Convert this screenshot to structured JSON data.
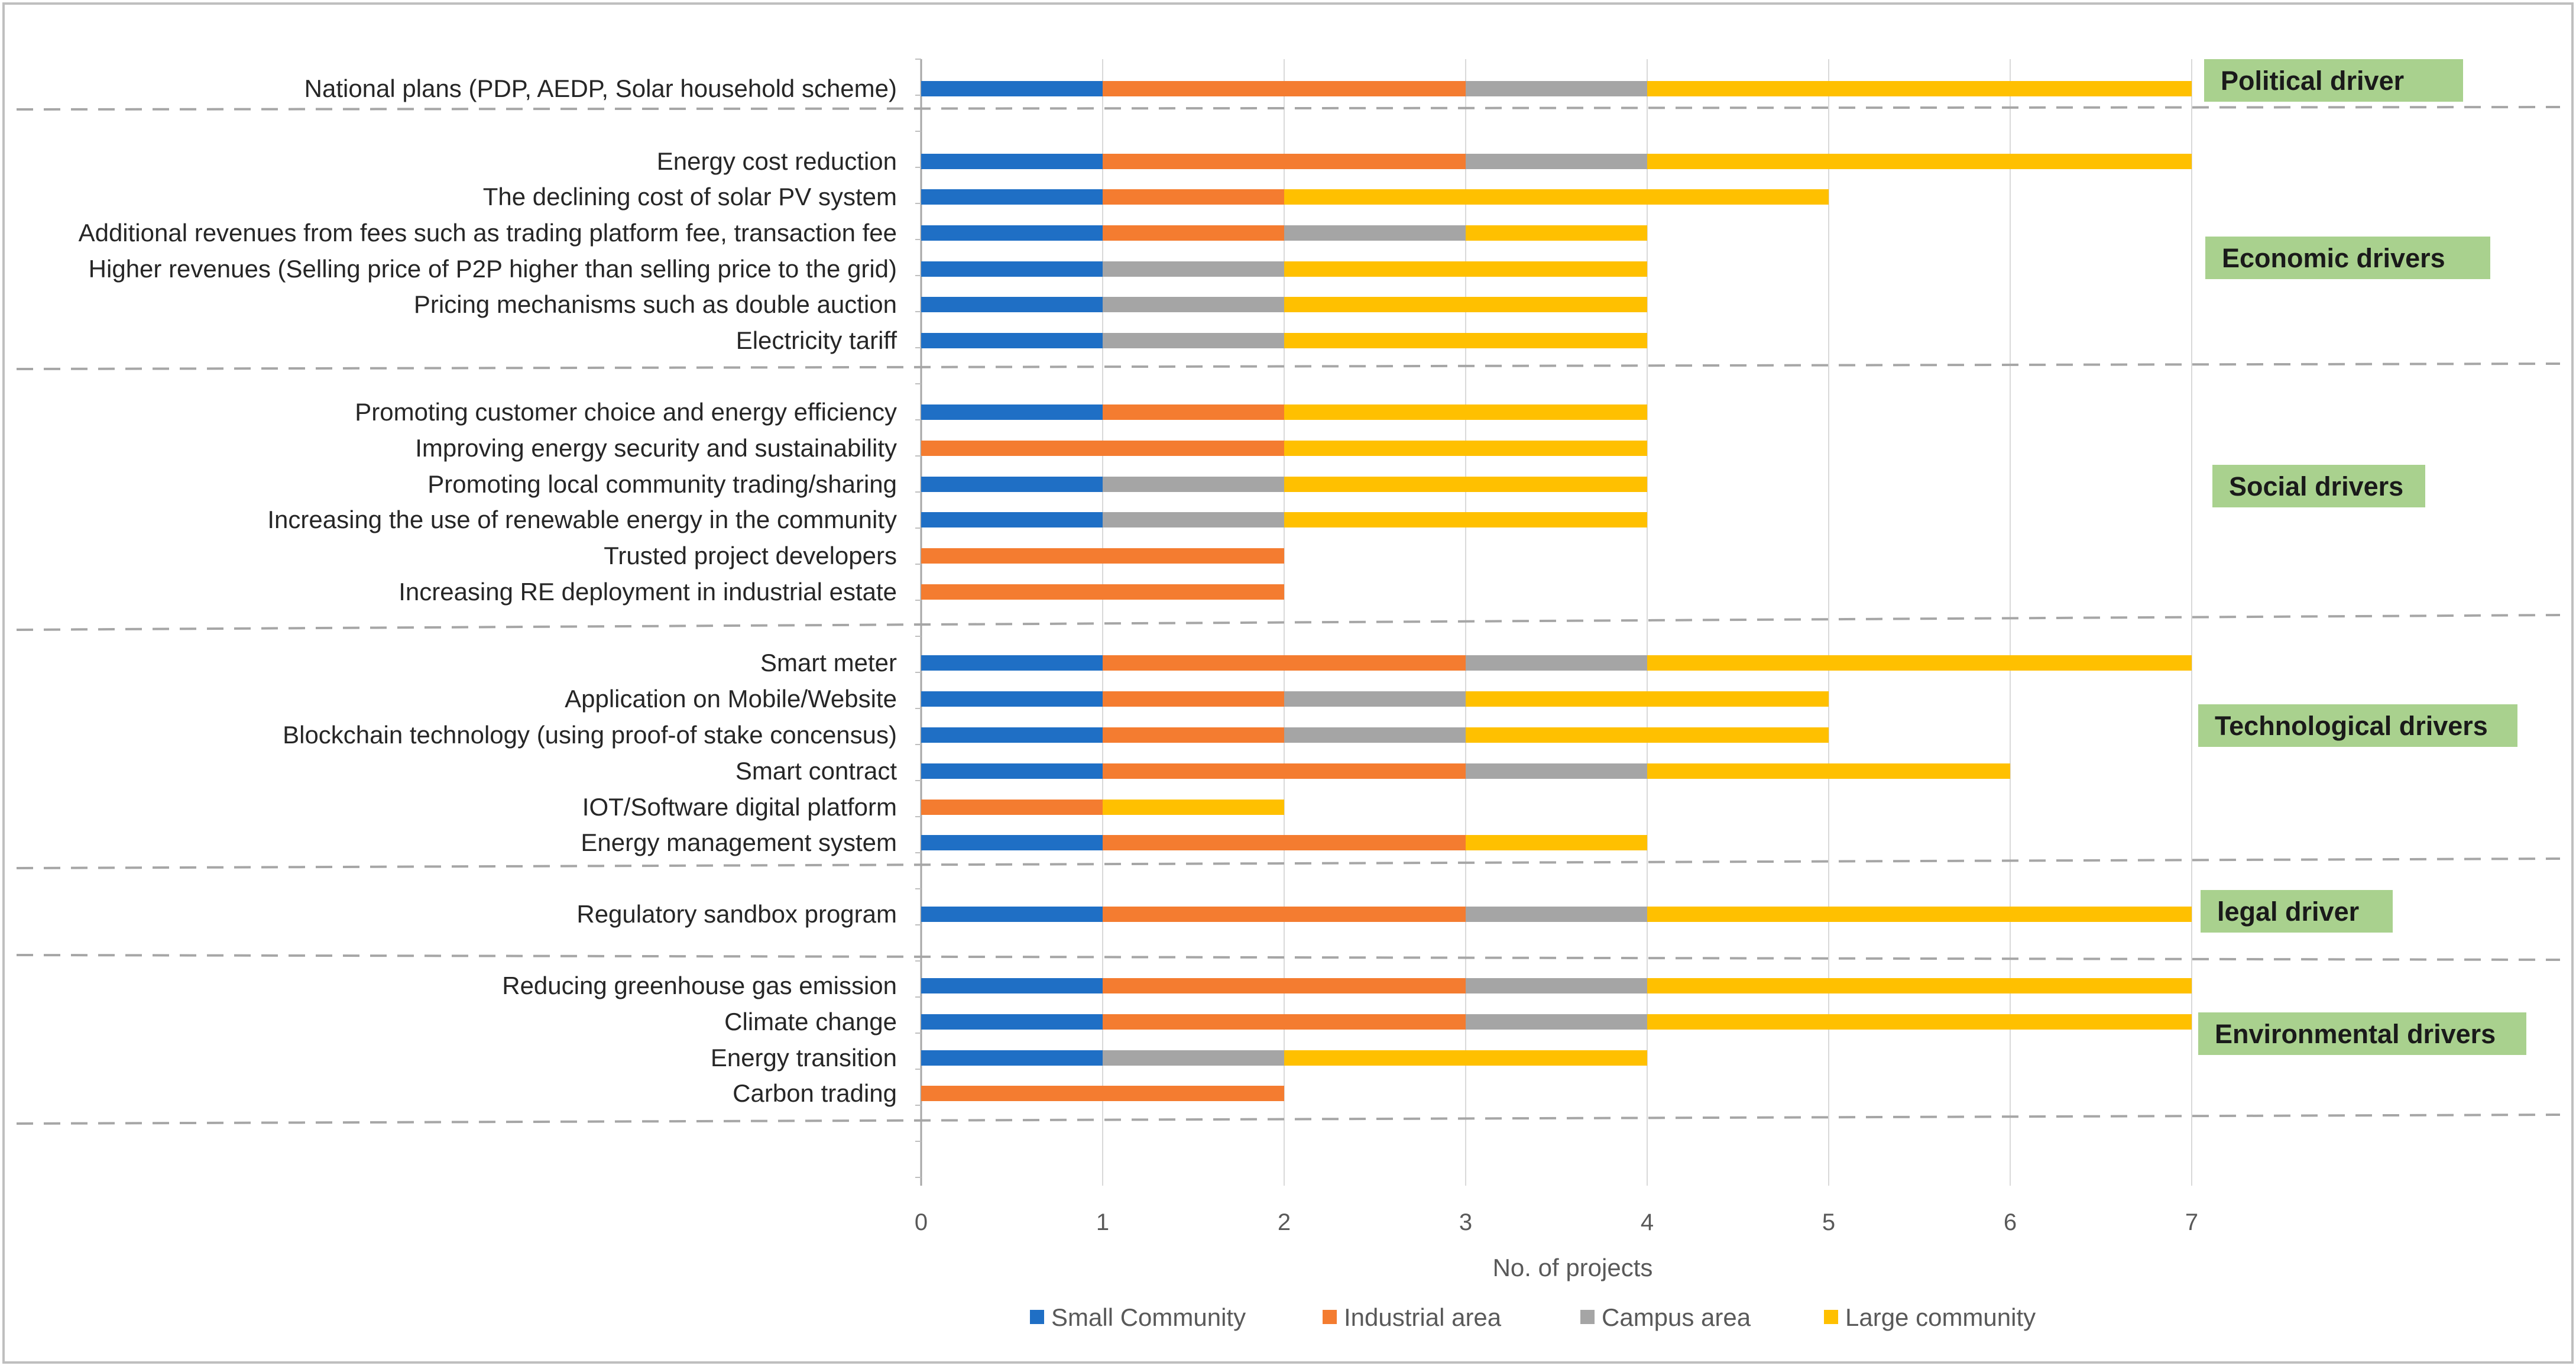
{
  "chart_data": {
    "type": "bar",
    "orientation": "horizontal",
    "stacked": true,
    "xlabel": "No. of projects",
    "xlim": [
      0,
      7
    ],
    "xticks": [
      "0",
      "1",
      "2",
      "3",
      "4",
      "5",
      "6",
      "7"
    ],
    "grid": true,
    "legend_position": "bottom",
    "series": [
      {
        "name": "Small Community",
        "color": "#1F6FC5"
      },
      {
        "name": "Industrial area",
        "color": "#F47C30"
      },
      {
        "name": "Campus area",
        "color": "#A5A5A5"
      },
      {
        "name": "Large community",
        "color": "#FFC000"
      }
    ],
    "groups": [
      {
        "label": "Political driver",
        "rows": [
          {
            "label": "National plans (PDP, AEDP, Solar household scheme)",
            "values": [
              1,
              2,
              1,
              3
            ]
          }
        ]
      },
      {
        "label": "Economic drivers",
        "rows": [
          {
            "label": "Energy cost reduction",
            "values": [
              1,
              2,
              1,
              3
            ]
          },
          {
            "label": "The declining cost of solar PV system",
            "values": [
              1,
              1,
              0,
              3
            ]
          },
          {
            "label": "Additional revenues from fees such as trading platform fee, transaction fee",
            "values": [
              1,
              1,
              1,
              1
            ]
          },
          {
            "label": "Higher revenues (Selling price of P2P higher than selling price to the grid)",
            "values": [
              1,
              0,
              1,
              2
            ]
          },
          {
            "label": "Pricing mechanisms such as double auction",
            "values": [
              1,
              0,
              1,
              2
            ]
          },
          {
            "label": "Electricity tariff",
            "values": [
              1,
              0,
              1,
              2
            ]
          }
        ]
      },
      {
        "label": "Social drivers",
        "rows": [
          {
            "label": "Promoting customer choice and energy efficiency",
            "values": [
              1,
              1,
              0,
              2
            ]
          },
          {
            "label": "Improving energy security and sustainability",
            "values": [
              0,
              2,
              0,
              2
            ]
          },
          {
            "label": "Promoting local community trading/sharing",
            "values": [
              1,
              0,
              1,
              2
            ]
          },
          {
            "label": "Increasing the use of renewable energy in the community",
            "values": [
              1,
              0,
              1,
              2
            ]
          },
          {
            "label": "Trusted project developers",
            "values": [
              0,
              2,
              0,
              0
            ]
          },
          {
            "label": "Increasing RE deployment in industrial estate",
            "values": [
              0,
              2,
              0,
              0
            ]
          }
        ]
      },
      {
        "label": "Technological drivers",
        "rows": [
          {
            "label": "Smart meter",
            "values": [
              1,
              2,
              1,
              3
            ]
          },
          {
            "label": "Application on Mobile/Website",
            "values": [
              1,
              1,
              1,
              2
            ]
          },
          {
            "label": "Blockchain technology (using proof-of stake concensus)",
            "values": [
              1,
              1,
              1,
              2
            ]
          },
          {
            "label": "Smart contract",
            "values": [
              1,
              2,
              1,
              2
            ]
          },
          {
            "label": "IOT/Software digital platform",
            "values": [
              0,
              1,
              0,
              1
            ]
          },
          {
            "label": "Energy management system",
            "values": [
              1,
              2,
              0,
              1
            ]
          }
        ]
      },
      {
        "label": "legal driver",
        "rows": [
          {
            "label": "Regulatory sandbox program",
            "values": [
              1,
              2,
              1,
              3
            ]
          }
        ]
      },
      {
        "label": "Environmental drivers",
        "rows": [
          {
            "label": "Reducing greenhouse gas emission",
            "values": [
              1,
              2,
              1,
              3
            ]
          },
          {
            "label": "Climate change",
            "values": [
              1,
              2,
              1,
              3
            ]
          },
          {
            "label": "Energy transition",
            "values": [
              1,
              0,
              1,
              2
            ]
          },
          {
            "label": "Carbon trading",
            "values": [
              0,
              2,
              0,
              0
            ]
          }
        ]
      }
    ]
  }
}
